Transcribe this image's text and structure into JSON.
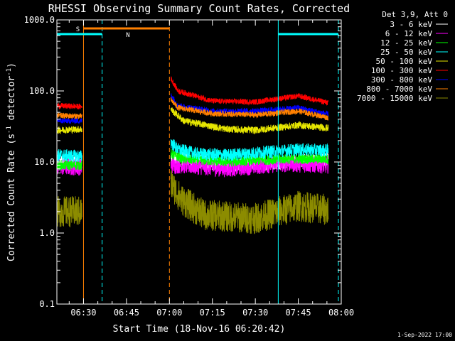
{
  "chart_data": {
    "type": "line",
    "title": "RHESSI Observing Summary Count Rates, Corrected",
    "xlabel": "Start Time (18-Nov-16 06:20:42)",
    "ylabel_main": "Corrected Count Rate (s",
    "ylabel_sup1": "-1",
    "ylabel_mid": " detector",
    "ylabel_sup2": "-1",
    "ylabel_end": ")",
    "y_scale": "log",
    "ylim": [
      0.1,
      1000
    ],
    "xlim_minutes": [
      "06:20:42",
      "08:00"
    ],
    "y_ticks": [
      {
        "value": 0.1,
        "label": "0.1"
      },
      {
        "value": 1,
        "label": "1.0"
      },
      {
        "value": 10,
        "label": "10.0"
      },
      {
        "value": 100,
        "label": "100.0"
      },
      {
        "value": 1000,
        "label": "1000.0"
      }
    ],
    "x_ticks": [
      {
        "time": "06:30",
        "label": "06:30"
      },
      {
        "time": "06:45",
        "label": "06:45"
      },
      {
        "time": "07:00",
        "label": "07:00"
      },
      {
        "time": "07:15",
        "label": "07:15"
      },
      {
        "time": "07:30",
        "label": "07:30"
      },
      {
        "time": "07:45",
        "label": "07:45"
      },
      {
        "time": "08:00",
        "label": "08:00"
      }
    ],
    "legend_title": "Det 3,9, Att 0",
    "legend_placement": "right",
    "series": [
      {
        "name": "3 - 6 keV",
        "color": "#ffffff",
        "jitter": 0.1,
        "segments": [
          {
            "x": [
              "06:20:42",
              "06:29:30"
            ],
            "y": [
              10,
              10
            ]
          },
          {
            "x": [
              "07:00:30",
              "07:05:00",
              "07:20:00",
              "07:40:00",
              "07:55:30"
            ],
            "y": [
              11,
              11,
              9,
              10,
              11
            ]
          }
        ]
      },
      {
        "name": "6 - 12 keV",
        "color": "#ff00ff",
        "jitter": 0.12,
        "segments": [
          {
            "x": [
              "06:20:42",
              "06:29:30"
            ],
            "y": [
              8.5,
              8.5
            ]
          },
          {
            "x": [
              "07:00:30",
              "07:05:00",
              "07:20:00",
              "07:40:00",
              "07:55:30"
            ],
            "y": [
              9,
              9,
              8,
              9.5,
              9
            ]
          }
        ]
      },
      {
        "name": "12 - 25 keV",
        "color": "#00ff00",
        "jitter": 0.07,
        "segments": [
          {
            "x": [
              "06:20:42",
              "06:29:30"
            ],
            "y": [
              9,
              9
            ]
          },
          {
            "x": [
              "07:00:30",
              "07:05:00",
              "07:20:00",
              "07:40:00",
              "07:55:30"
            ],
            "y": [
              13,
              11,
              10,
              11,
              11
            ]
          }
        ]
      },
      {
        "name": "25 - 50 keV",
        "color": "#00ffff",
        "jitter": 0.09,
        "segments": [
          {
            "x": [
              "06:20:42",
              "06:29:30"
            ],
            "y": [
              12.5,
              12
            ]
          },
          {
            "x": [
              "07:00:30",
              "07:03:00",
              "07:10:00",
              "07:20:00",
              "07:45:00",
              "07:55:30"
            ],
            "y": [
              19,
              15,
              13,
              12.5,
              15,
              14.5
            ]
          }
        ]
      },
      {
        "name": "50 - 100 keV",
        "color": "#e6e600",
        "jitter": 0.05,
        "segments": [
          {
            "x": [
              "06:20:42",
              "06:29:30"
            ],
            "y": [
              28,
              29
            ]
          },
          {
            "x": [
              "07:00:30",
              "07:05:00",
              "07:20:00",
              "07:30:00",
              "07:45:00",
              "07:55:30"
            ],
            "y": [
              55,
              38,
              29,
              28,
              33,
              30
            ]
          }
        ]
      },
      {
        "name": "100 - 300 keV",
        "color": "#ff0000",
        "jitter": 0.04,
        "segments": [
          {
            "x": [
              "06:20:42",
              "06:29:30"
            ],
            "y": [
              62,
              60
            ]
          },
          {
            "x": [
              "07:00:30",
              "07:03:00",
              "07:15:00",
              "07:30:00",
              "07:45:00",
              "07:55:30"
            ],
            "y": [
              150,
              100,
              72,
              70,
              85,
              68
            ]
          }
        ]
      },
      {
        "name": "300 - 800 keV",
        "color": "#0000ff",
        "jitter": 0.04,
        "segments": [
          {
            "x": [
              "06:20:42",
              "06:29:30"
            ],
            "y": [
              38,
              38
            ]
          },
          {
            "x": [
              "07:00:30",
              "07:03:00",
              "07:15:00",
              "07:30:00",
              "07:45:00",
              "07:55:30"
            ],
            "y": [
              90,
              62,
              52,
              52,
              58,
              47
            ]
          }
        ]
      },
      {
        "name": "800 - 7000 keV",
        "color": "#ff8000",
        "jitter": 0.04,
        "segments": [
          {
            "x": [
              "06:20:42",
              "06:29:30"
            ],
            "y": [
              45,
              44
            ]
          },
          {
            "x": [
              "07:00:30",
              "07:03:00",
              "07:15:00",
              "07:30:00",
              "07:45:00",
              "07:55:30"
            ],
            "y": [
              75,
              58,
              48,
              46,
              52,
              42
            ]
          }
        ]
      },
      {
        "name": "7000 - 15000 keV",
        "color": "#8c8c00",
        "jitter": 0.22,
        "segments": [
          {
            "x": [
              "06:20:42",
              "06:29:30"
            ],
            "y": [
              2,
              2
            ]
          },
          {
            "x": [
              "07:00:30",
              "07:04:00",
              "07:12:00",
              "07:30:00",
              "07:45:00",
              "07:55:30"
            ],
            "y": [
              5,
              3,
              1.8,
              1.6,
              2.4,
              2.1
            ]
          }
        ]
      }
    ],
    "attenuator_states": [
      {
        "label": "S",
        "color": "#ff8000",
        "label_time": "06:28:00",
        "bar": [
          "06:30:00",
          "07:00:00"
        ]
      },
      {
        "label": "N",
        "color": "#00ffff",
        "label_time": "06:45:30",
        "bar": [
          "06:20:42",
          "06:36:30"
        ]
      }
    ],
    "cyan_bar_late": [
      "07:38:00",
      "07:59:00"
    ],
    "vlines": [
      {
        "time": "06:20:42",
        "color": "#00ffff",
        "style": "solid"
      },
      {
        "time": "06:30:00",
        "color": "#ff8000",
        "style": "solid"
      },
      {
        "time": "06:36:30",
        "color": "#00ffff",
        "style": "dashed"
      },
      {
        "time": "07:00:00",
        "color": "#ff8000",
        "style": "dashed"
      },
      {
        "time": "07:38:00",
        "color": "#00ffff",
        "style": "solid"
      },
      {
        "time": "07:59:00",
        "color": "#00ffff",
        "style": "dashed"
      }
    ],
    "timestamp": "1-Sep-2022 17:00"
  }
}
